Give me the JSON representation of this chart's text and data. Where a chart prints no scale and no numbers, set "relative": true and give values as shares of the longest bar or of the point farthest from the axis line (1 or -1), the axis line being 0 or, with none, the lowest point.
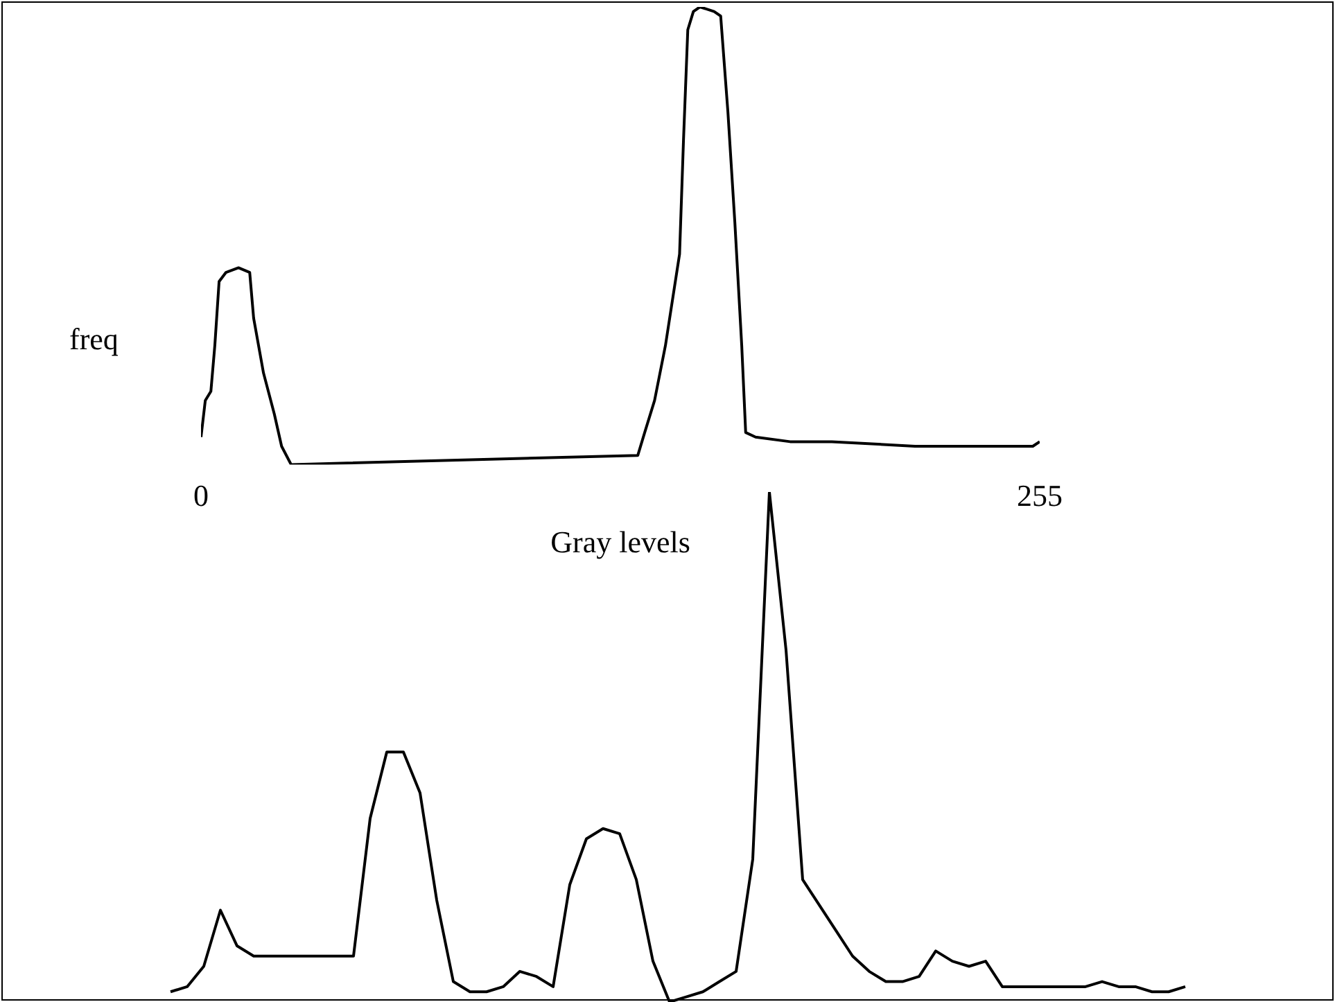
{
  "chart_data": [
    {
      "type": "line",
      "relative": true,
      "xlabel": "Gray levels",
      "ylabel": "freq",
      "marker": "none",
      "color": "#000000",
      "xlim": [
        0,
        255
      ],
      "xticks": [
        0,
        255
      ],
      "x": [
        0,
        1.3,
        3,
        4.2,
        5.5,
        7.6,
        11.4,
        14.8,
        16,
        19,
        22.3,
        24.5,
        27.4,
        132.8,
        134.9,
        137.9,
        141.2,
        145.5,
        146.7,
        148,
        149.7,
        151.7,
        156,
        158,
        160.2,
        162.3,
        164.4,
        165.6,
        168.6,
        179.1,
        191.8,
        217.1,
        234,
        252.9,
        255
      ],
      "values": [
        0.06,
        0.14,
        0.16,
        0.26,
        0.4,
        0.42,
        0.43,
        0.42,
        0.32,
        0.2,
        0.11,
        0.04,
        0,
        0.02,
        0.07,
        0.14,
        0.26,
        0.46,
        0.71,
        0.95,
        0.99,
        1,
        0.99,
        0.98,
        0.77,
        0.53,
        0.26,
        0.07,
        0.06,
        0.05,
        0.05,
        0.04,
        0.04,
        0.04,
        0.05
      ]
    },
    {
      "type": "line",
      "relative": true,
      "marker": "none",
      "color": "#000000",
      "tick_labels": false,
      "categories": [
        null,
        null,
        null,
        null,
        null,
        null,
        null,
        null,
        null,
        null,
        null,
        null,
        null,
        null,
        null,
        null,
        null,
        null,
        null,
        null,
        null,
        null,
        null,
        null,
        null,
        null,
        null,
        null,
        null,
        null,
        null,
        null,
        null,
        null,
        null,
        null,
        null,
        null,
        null,
        null,
        null,
        null,
        null,
        null,
        null,
        null,
        null,
        null,
        null,
        null,
        null,
        null,
        null,
        null,
        null,
        null,
        null,
        null,
        null,
        null,
        null,
        null
      ],
      "values": [
        0.02,
        0.03,
        0.07,
        0.18,
        0.11,
        0.09,
        0.09,
        0.09,
        0.09,
        0.09,
        0.09,
        0.09,
        0.36,
        0.49,
        0.49,
        0.41,
        0.2,
        0.04,
        0.02,
        0.02,
        0.03,
        0.06,
        0.05,
        0.03,
        0.23,
        0.32,
        0.34,
        0.33,
        0.24,
        0.08,
        0,
        0.01,
        0.02,
        0.04,
        0.06,
        0.28,
        1,
        0.69,
        0.24,
        0.19,
        0.14,
        0.09,
        0.06,
        0.04,
        0.04,
        0.05,
        0.1,
        0.08,
        0.07,
        0.08,
        0.03,
        0.03,
        0.03,
        0.03,
        0.03,
        0.03,
        0.04,
        0.03,
        0.03,
        0.02,
        0.02,
        0.03
      ]
    }
  ]
}
